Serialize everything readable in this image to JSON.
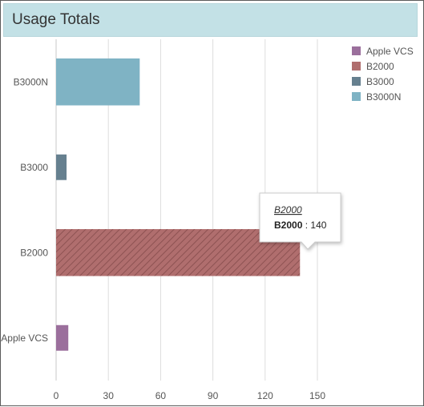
{
  "header": {
    "title": "Usage Totals"
  },
  "chart_data": {
    "type": "bar",
    "orientation": "horizontal",
    "categories": [
      "Apple VCS",
      "B2000",
      "B3000",
      "B3000N"
    ],
    "series": [
      {
        "name": "Apple VCS",
        "values": [
          7,
          null,
          null,
          null
        ],
        "color": "#9b6f9c"
      },
      {
        "name": "B2000",
        "values": [
          null,
          140,
          null,
          null
        ],
        "color": "#b06e6e"
      },
      {
        "name": "B3000",
        "values": [
          null,
          null,
          6,
          null
        ],
        "color": "#66808f"
      },
      {
        "name": "B3000N",
        "values": [
          null,
          null,
          null,
          48
        ],
        "color": "#7fb3c4"
      }
    ],
    "xticks": [
      "0",
      "30",
      "60",
      "90",
      "120",
      "150"
    ],
    "xlim": [
      0,
      150
    ],
    "grid": true,
    "legend": "top-right",
    "tooltip": {
      "title": "B2000",
      "series": "B2000",
      "sep": " : ",
      "value": "140"
    }
  }
}
